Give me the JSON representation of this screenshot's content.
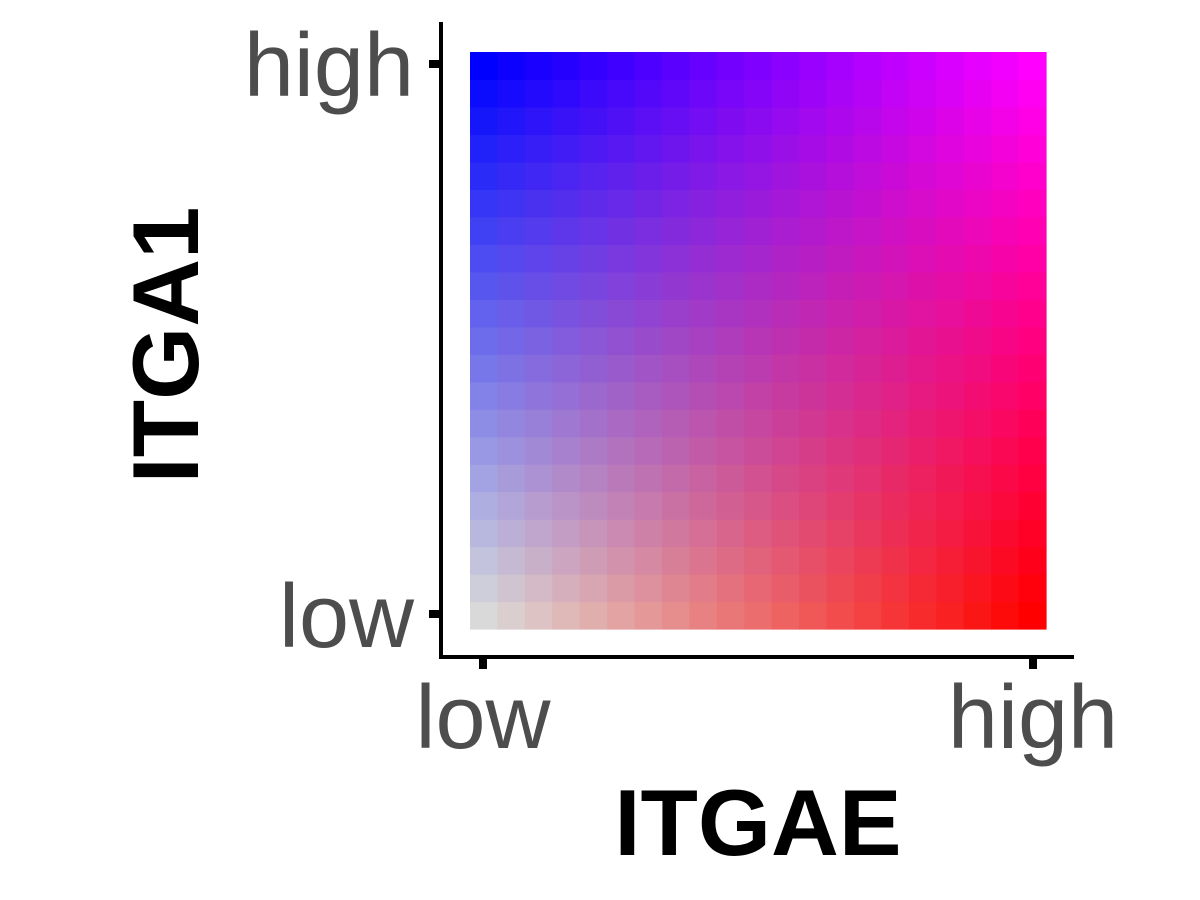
{
  "chart_data": {
    "type": "heatmap",
    "title": "",
    "xlabel": "ITGAE",
    "ylabel": "ITGA1",
    "x_tick_labels": [
      "low",
      "high"
    ],
    "y_tick_labels": [
      "low",
      "high"
    ],
    "grid": false,
    "legend": "none",
    "x_levels": 21,
    "y_levels": 21,
    "colors": {
      "low_low": "#d9d9d9",
      "high_x": "#ff0000",
      "high_y": "#0000ff",
      "high_both": "#ff00ff"
    }
  }
}
